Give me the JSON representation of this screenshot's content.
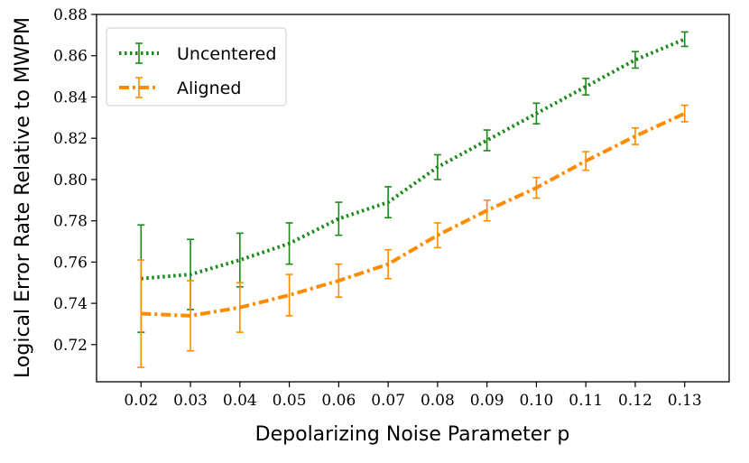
{
  "chart_data": {
    "type": "line",
    "title": "",
    "xlabel": "Depolarizing Noise Parameter p",
    "ylabel": "Logical Error Rate Relative to MWPM",
    "x": [
      0.02,
      0.03,
      0.04,
      0.05,
      0.06,
      0.07,
      0.08,
      0.09,
      0.1,
      0.11,
      0.12,
      0.13
    ],
    "x_tick_labels": [
      "0.02",
      "0.03",
      "0.04",
      "0.05",
      "0.06",
      "0.07",
      "0.08",
      "0.09",
      "0.10",
      "0.11",
      "0.12",
      "0.13"
    ],
    "xlim": [
      0.011,
      0.139
    ],
    "ylim": [
      0.702,
      0.88
    ],
    "y_ticks": [
      0.72,
      0.74,
      0.76,
      0.78,
      0.8,
      0.82,
      0.84,
      0.86,
      0.88
    ],
    "y_tick_labels": [
      "0.72",
      "0.74",
      "0.76",
      "0.78",
      "0.80",
      "0.82",
      "0.84",
      "0.86",
      "0.88"
    ],
    "grid": false,
    "legend_position": "top-left",
    "series": [
      {
        "name": "Uncentered",
        "color": "#1a8a1a",
        "line_style": "dotted",
        "values": [
          0.752,
          0.754,
          0.761,
          0.769,
          0.781,
          0.789,
          0.806,
          0.819,
          0.832,
          0.845,
          0.858,
          0.868
        ],
        "error": [
          0.026,
          0.017,
          0.013,
          0.01,
          0.008,
          0.0075,
          0.006,
          0.005,
          0.005,
          0.004,
          0.004,
          0.0035
        ]
      },
      {
        "name": "Aligned",
        "color": "#ff8c00",
        "line_style": "dashdot",
        "values": [
          0.735,
          0.734,
          0.738,
          0.744,
          0.751,
          0.759,
          0.773,
          0.785,
          0.796,
          0.809,
          0.821,
          0.832
        ],
        "error": [
          0.026,
          0.017,
          0.012,
          0.01,
          0.008,
          0.007,
          0.006,
          0.005,
          0.005,
          0.0045,
          0.004,
          0.004
        ]
      }
    ]
  }
}
